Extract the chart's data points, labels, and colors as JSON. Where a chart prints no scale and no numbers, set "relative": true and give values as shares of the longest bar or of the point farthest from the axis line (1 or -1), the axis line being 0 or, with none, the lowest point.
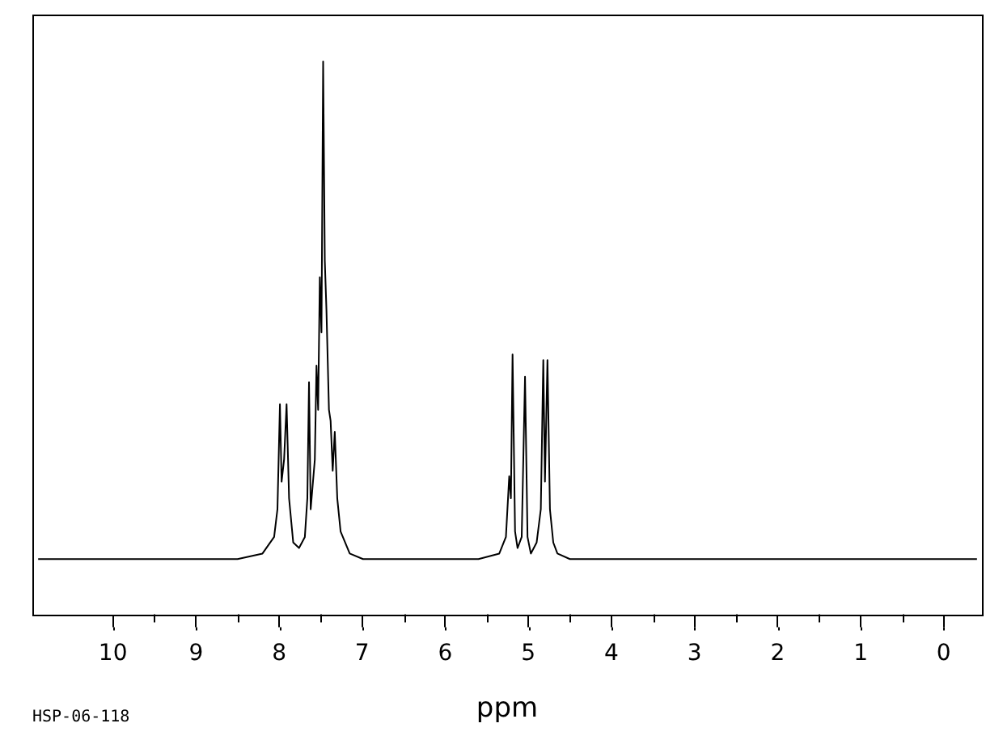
{
  "chart_data": {
    "type": "line",
    "xlabel": "ppm",
    "annotations": [
      "HSP-06-118"
    ],
    "relative": true,
    "grid": false,
    "legend": false,
    "marker": "none",
    "line_style": "solid",
    "tick_labels": "x",
    "xlim": [
      10.97,
      -0.46
    ],
    "xticks": [
      10,
      9,
      8,
      7,
      6,
      5,
      4,
      3,
      2,
      1,
      0
    ],
    "series": [
      {
        "color": "#000000",
        "x": [
          10.9,
          10,
          9,
          8.5,
          8.2,
          8.06,
          8.02,
          7.99,
          7.97,
          7.94,
          7.91,
          7.88,
          7.83,
          7.76,
          7.69,
          7.66,
          7.64,
          7.62,
          7.57,
          7.55,
          7.53,
          7.51,
          7.49,
          7.47,
          7.45,
          7.43,
          7.4,
          7.38,
          7.355,
          7.33,
          7.3,
          7.26,
          7.15,
          6.99,
          6.5,
          6,
          5.6,
          5.35,
          5.27,
          5.23,
          5.21,
          5.19,
          5.16,
          5.13,
          5.08,
          5.04,
          5.01,
          4.97,
          4.9,
          4.85,
          4.82,
          4.8,
          4.77,
          4.74,
          4.7,
          4.65,
          4.5,
          4,
          3,
          2,
          1,
          0,
          -0.4
        ],
        "values": [
          0.1,
          0.1,
          0.1,
          0.1,
          0.11,
          0.14,
          0.19,
          0.38,
          0.24,
          0.28,
          0.38,
          0.21,
          0.13,
          0.12,
          0.14,
          0.21,
          0.42,
          0.19,
          0.28,
          0.45,
          0.37,
          0.61,
          0.51,
          1,
          0.64,
          0.55,
          0.37,
          0.35,
          0.26,
          0.33,
          0.21,
          0.15,
          0.11,
          0.1,
          0.1,
          0.1,
          0.1,
          0.11,
          0.14,
          0.25,
          0.21,
          0.47,
          0.15,
          0.12,
          0.14,
          0.43,
          0.14,
          0.11,
          0.13,
          0.19,
          0.46,
          0.24,
          0.46,
          0.19,
          0.13,
          0.11,
          0.1,
          0.1,
          0.1,
          0.1,
          0.1,
          0.1,
          0.1
        ]
      }
    ]
  }
}
